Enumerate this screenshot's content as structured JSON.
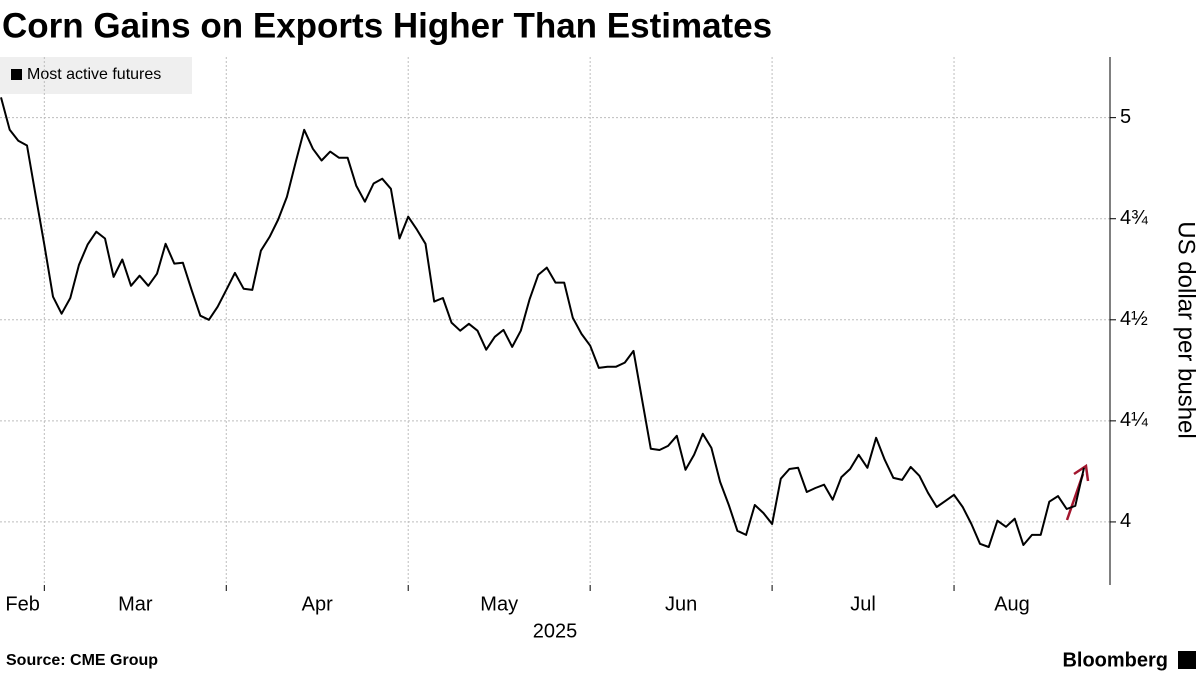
{
  "chart_data": {
    "type": "line",
    "title": "Corn Gains on Exports Higher Than Estimates",
    "legend_title": "Most active futures",
    "xlabel": "2025",
    "ylabel": "US dollar per bushel",
    "source": "Source: CME Group",
    "brand": "Bloomberg",
    "categories": [
      "Feb",
      null,
      null,
      null,
      null,
      "Mar",
      null,
      null,
      null,
      null,
      null,
      null,
      null,
      null,
      null,
      null,
      null,
      null,
      null,
      null,
      null,
      null,
      null,
      null,
      null,
      null,
      "Apr",
      null,
      null,
      null,
      null,
      null,
      null,
      null,
      null,
      null,
      null,
      null,
      null,
      null,
      null,
      null,
      null,
      null,
      null,
      null,
      null,
      "May",
      null,
      null,
      null,
      null,
      null,
      null,
      null,
      null,
      null,
      null,
      null,
      null,
      null,
      null,
      null,
      null,
      null,
      null,
      null,
      null,
      "Jun",
      null,
      null,
      null,
      null,
      null,
      null,
      null,
      null,
      null,
      null,
      null,
      null,
      null,
      null,
      null,
      null,
      null,
      null,
      null,
      null,
      "Jul",
      null,
      null,
      null,
      null,
      null,
      null,
      null,
      null,
      null,
      null,
      null,
      null,
      null,
      null,
      null,
      null,
      null,
      null,
      null,
      null,
      "Aug",
      null,
      null,
      null,
      null,
      null,
      null,
      null,
      null,
      null,
      null,
      null,
      null,
      null,
      null,
      null
    ],
    "series": [
      {
        "name": "Most active futures",
        "color": "#000000",
        "values": [
          5.05,
          4.97,
          4.943,
          4.931,
          4.807,
          4.686,
          4.557,
          4.515,
          4.554,
          4.636,
          4.686,
          4.718,
          4.701,
          4.606,
          4.649,
          4.584,
          4.609,
          4.584,
          4.614,
          4.688,
          4.639,
          4.641,
          4.574,
          4.51,
          4.5,
          4.532,
          4.574,
          4.616,
          4.577,
          4.574,
          4.671,
          4.705,
          4.748,
          4.804,
          4.889,
          4.97,
          4.923,
          4.894,
          4.916,
          4.901,
          4.901,
          4.832,
          4.792,
          4.837,
          4.849,
          4.824,
          4.701,
          4.755,
          4.723,
          4.688,
          4.545,
          4.554,
          4.493,
          4.473,
          4.49,
          4.473,
          4.426,
          4.458,
          4.475,
          4.433,
          4.473,
          4.55,
          4.611,
          4.629,
          4.592,
          4.592,
          4.505,
          4.465,
          4.436,
          4.381,
          4.384,
          4.384,
          4.394,
          4.423,
          4.302,
          4.181,
          4.178,
          4.188,
          4.213,
          4.129,
          4.166,
          4.218,
          4.183,
          4.099,
          4.042,
          3.978,
          3.968,
          4.042,
          4.022,
          3.995,
          4.107,
          4.131,
          4.134,
          4.074,
          4.084,
          4.092,
          4.055,
          4.111,
          4.131,
          4.166,
          4.134,
          4.208,
          4.154,
          4.109,
          4.104,
          4.136,
          4.114,
          4.072,
          4.037,
          4.052,
          4.067,
          4.037,
          3.995,
          3.946,
          3.938,
          4.003,
          3.988,
          4.008,
          3.943,
          3.968,
          3.968,
          4.05,
          4.064,
          4.032,
          4.04,
          4.134
        ]
      }
    ],
    "ylim": [
      3.844,
      5.15
    ],
    "yticks": [
      4,
      {
        "value": 4.25,
        "label": "4¼"
      },
      {
        "value": 4.5,
        "label": "4½"
      },
      {
        "value": 4.75,
        "label": "4¾"
      },
      5
    ],
    "grid": true,
    "legend": "upper left"
  }
}
